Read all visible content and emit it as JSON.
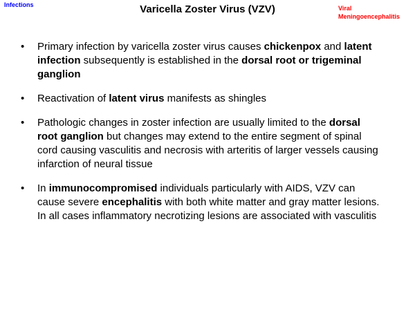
{
  "header": {
    "section": "Infections",
    "title": "Varicella Zoster Virus (VZV)",
    "topic_line1": "Viral",
    "topic_line2": "Meningoencephalitis"
  },
  "bullet_symbol": "•",
  "bullets": [
    {
      "s1": "Primary infection by varicella zoster virus causes ",
      "b1": "chickenpox",
      "s2": " and ",
      "b2": "latent infection",
      "s3": " subsequently is established in the ",
      "b3": "dorsal root or trigeminal ganglion",
      "s4": ""
    },
    {
      "s1": "Reactivation of ",
      "b1": "latent virus",
      "s2": " manifests as shingles"
    },
    {
      "s1": "Pathologic changes in zoster infection are usually limited to the ",
      "b1": "dorsal root ganglion",
      "s2": " but changes may extend to the entire segment of spinal cord causing vasculitis and necrosis with arteritis of larger vessels causing infarction of neural tissue"
    },
    {
      "s1": "In ",
      "b1": "immunocompromised",
      "s2": " individuals particularly with AIDS, VZV can cause severe ",
      "b2": "encephalitis",
      "s3": " with both white matter and gray matter lesions. In all cases inflammatory necrotizing lesions are associated with vasculitis"
    }
  ]
}
